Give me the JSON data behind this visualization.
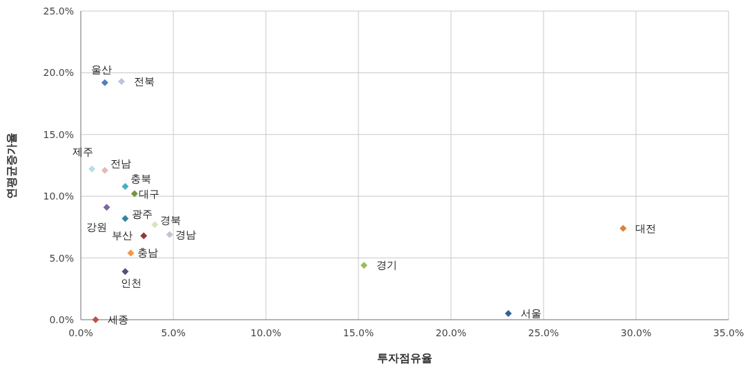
{
  "chart_data": {
    "type": "scatter",
    "xlabel": "투자점유율",
    "ylabel": "연평균증가율",
    "xlim": [
      0,
      35
    ],
    "ylim": [
      0,
      25
    ],
    "xticks": [
      {
        "value": 0,
        "label": "0.0%"
      },
      {
        "value": 5,
        "label": "5.0%"
      },
      {
        "value": 10,
        "label": "10.0%"
      },
      {
        "value": 15,
        "label": "15.0%"
      },
      {
        "value": 20,
        "label": "20.0%"
      },
      {
        "value": 25,
        "label": "25.0%"
      },
      {
        "value": 30,
        "label": "30.0%"
      },
      {
        "value": 35,
        "label": "35.0%"
      }
    ],
    "yticks": [
      {
        "value": 0,
        "label": "0.0%"
      },
      {
        "value": 5,
        "label": "5.0%"
      },
      {
        "value": 10,
        "label": "10.0%"
      },
      {
        "value": 15,
        "label": "15.0%"
      },
      {
        "value": 20,
        "label": "20.0%"
      },
      {
        "value": 25,
        "label": "25.0%"
      }
    ],
    "grid": true,
    "marker": "diamond",
    "series": [
      {
        "name": "울산",
        "color": "#4f81bd",
        "x": [
          1.3
        ],
        "values": [
          19.2
        ]
      },
      {
        "name": "전북",
        "color": "#b9c4dd",
        "x": [
          2.2
        ],
        "values": [
          19.3
        ]
      },
      {
        "name": "제주",
        "color": "#b7dde8",
        "x": [
          0.6
        ],
        "values": [
          12.2
        ]
      },
      {
        "name": "전남",
        "color": "#e6b9b8",
        "x": [
          1.3
        ],
        "values": [
          12.1
        ]
      },
      {
        "name": "충북",
        "color": "#4bacc6",
        "x": [
          2.4
        ],
        "values": [
          10.8
        ]
      },
      {
        "name": "대구",
        "color": "#77933c",
        "x": [
          2.9
        ],
        "values": [
          10.2
        ]
      },
      {
        "name": "강원",
        "color": "#8064a2",
        "x": [
          1.4
        ],
        "values": [
          9.1
        ]
      },
      {
        "name": "광주",
        "color": "#31859c",
        "x": [
          2.4
        ],
        "values": [
          8.2
        ]
      },
      {
        "name": "경북",
        "color": "#d7e4bd",
        "x": [
          4.0
        ],
        "values": [
          7.7
        ]
      },
      {
        "name": "경남",
        "color": "#c3c3d6",
        "x": [
          4.8
        ],
        "values": [
          6.9
        ]
      },
      {
        "name": "부산",
        "color": "#953735",
        "x": [
          3.4
        ],
        "values": [
          6.8
        ]
      },
      {
        "name": "충남",
        "color": "#f79646",
        "x": [
          2.7
        ],
        "values": [
          5.4
        ]
      },
      {
        "name": "인천",
        "color": "#604a7b",
        "x": [
          2.4
        ],
        "values": [
          3.9
        ]
      },
      {
        "name": "세종",
        "color": "#c0504d",
        "x": [
          0.8
        ],
        "values": [
          0.0
        ]
      },
      {
        "name": "경기",
        "color": "#9bbb59",
        "x": [
          15.3
        ],
        "values": [
          4.4
        ]
      },
      {
        "name": "서울",
        "color": "#376092",
        "x": [
          23.1
        ],
        "values": [
          0.5
        ]
      },
      {
        "name": "대전",
        "color": "#d9823b",
        "x": [
          29.3
        ],
        "values": [
          7.4
        ]
      }
    ]
  }
}
